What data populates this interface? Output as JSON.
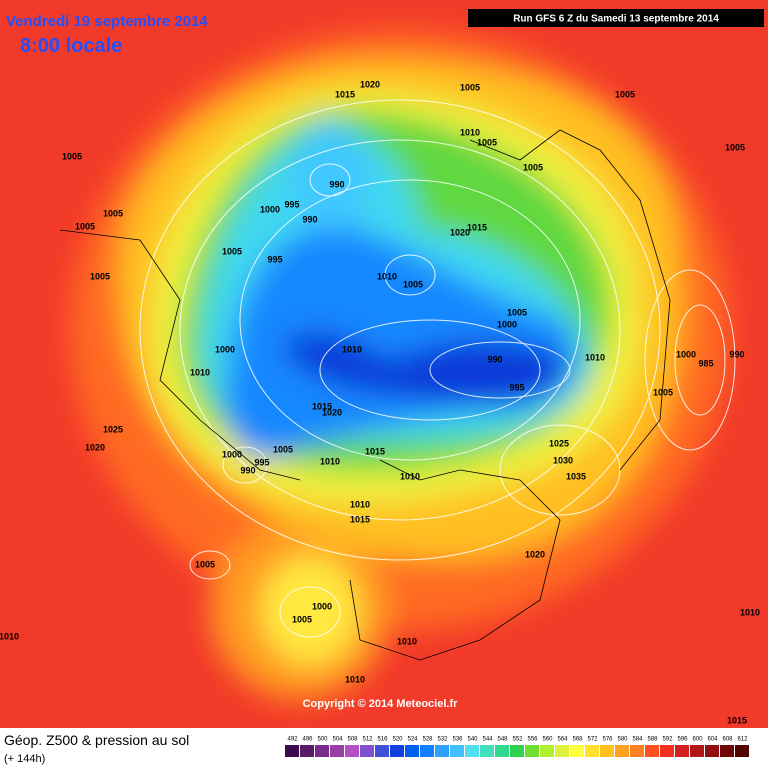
{
  "header": {
    "date": "Vendredi 19 septembre 2014",
    "time": "8:00 locale",
    "run": "Run GFS 6 Z du Samedi 13 septembre 2014"
  },
  "copyright": "Copyright © 2014 Meteociel.fr",
  "legend": {
    "title": "Géop. Z500 & pression au sol",
    "lead": "(+ 144h)",
    "values": [
      492,
      496,
      500,
      504,
      508,
      512,
      516,
      520,
      524,
      528,
      532,
      536,
      540,
      544,
      548,
      552,
      556,
      560,
      564,
      568,
      572,
      576,
      580,
      584,
      588,
      592,
      596,
      600,
      604,
      608,
      612
    ],
    "colors": [
      "#3c0a4c",
      "#5a1a6a",
      "#7a2c8a",
      "#9a3ea8",
      "#b450c6",
      "#8050d0",
      "#4050d8",
      "#1040e0",
      "#0060f0",
      "#1080ff",
      "#30a0ff",
      "#40c0ff",
      "#50e0f0",
      "#40e0c0",
      "#30d890",
      "#30d050",
      "#70e030",
      "#b0f030",
      "#e0f040",
      "#ffff40",
      "#ffe030",
      "#ffc020",
      "#ffa020",
      "#ff8020",
      "#ff5020",
      "#f03020",
      "#d02020",
      "#b01818",
      "#901010",
      "#700808",
      "#500404"
    ]
  },
  "map_labels": [
    1020,
    1015,
    1005,
    1005,
    1010,
    1005,
    1005,
    1005,
    1005,
    990,
    995,
    1000,
    990,
    1005,
    1005,
    1020,
    1015,
    1005,
    995,
    1005,
    1010,
    1005,
    1005,
    1000,
    1000,
    1010,
    990,
    1010,
    1000,
    985,
    990,
    1010,
    995,
    1005,
    1015,
    1020,
    1025,
    1020,
    1005,
    1015,
    1025,
    1000,
    995,
    990,
    1010,
    1030,
    1035,
    1010,
    1010,
    1015,
    1020,
    1005,
    1000,
    1005,
    1010,
    1010,
    1010,
    1010,
    1015
  ]
}
